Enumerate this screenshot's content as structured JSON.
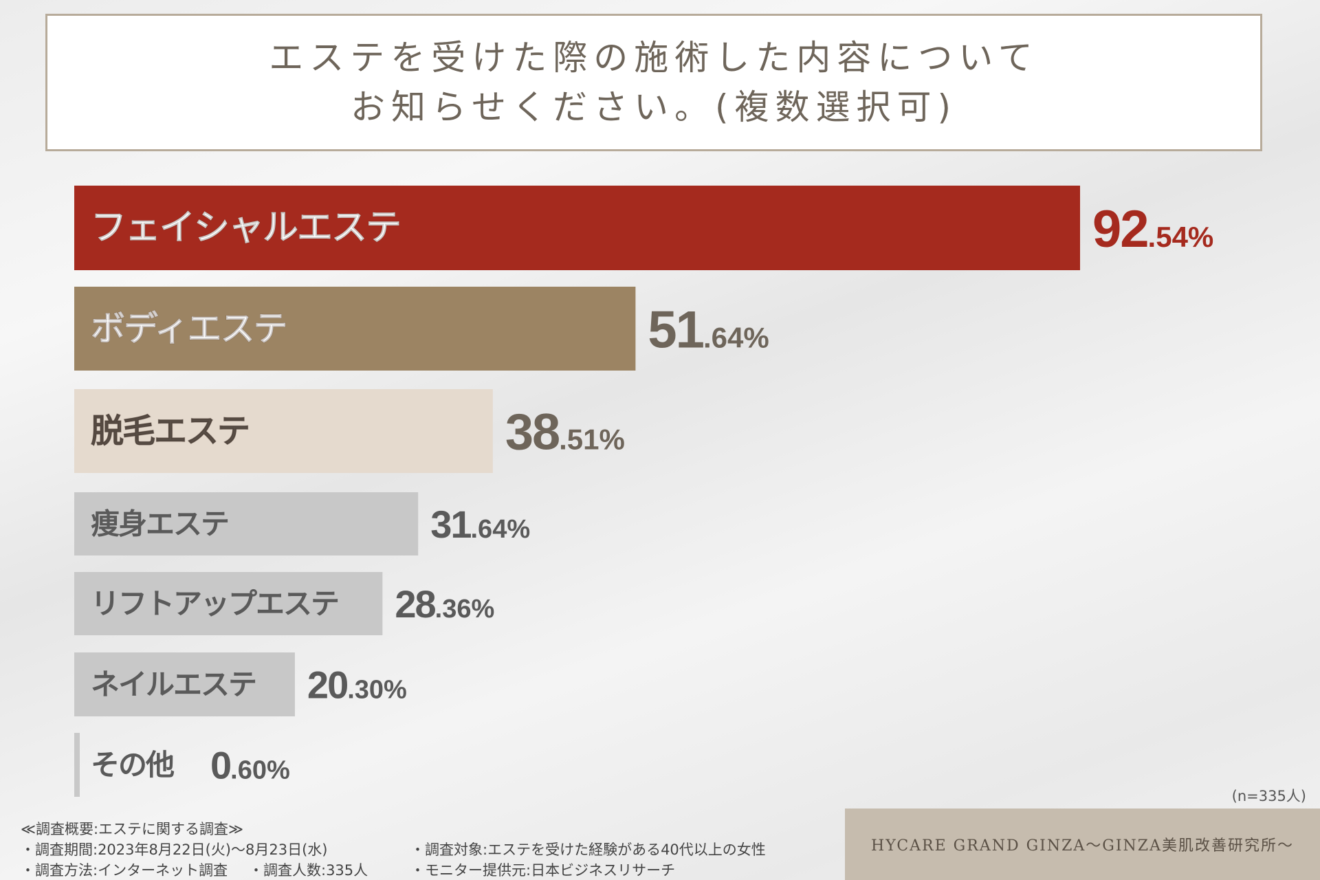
{
  "header": {
    "title_line1": "エステを受けた際の施術した内容について",
    "title_line2": "お知らせください。(複数選択可)"
  },
  "chart_data": {
    "type": "bar",
    "orientation": "horizontal",
    "title": "エステを受けた際の施術した内容についてお知らせください。(複数選択可)",
    "categories": [
      "フェイシャルエステ",
      "ボディエステ",
      "脱毛エステ",
      "痩身エステ",
      "リフトアップエステ",
      "ネイルエステ",
      "その他"
    ],
    "values": [
      92.54,
      51.64,
      38.51,
      31.64,
      28.36,
      20.3,
      0.6
    ],
    "value_labels_int": [
      "92",
      "51",
      "38",
      "31",
      "28",
      "20",
      "0"
    ],
    "value_labels_dec": [
      ".54%",
      ".64%",
      ".51%",
      ".64%",
      ".36%",
      ".30%",
      ".60%"
    ],
    "unit": "%",
    "xlim": [
      0,
      100
    ],
    "colors": [
      "#a52a1e",
      "#9c8463",
      "#e5dace",
      "#c8c8c8",
      "#c8c8c8",
      "#c8c8c8",
      "#c8c8c8"
    ],
    "label_colors": [
      "#ffffff",
      "#ffffff",
      "#5a5048",
      "#5a5a5a",
      "#5a5a5a",
      "#5a5a5a",
      "#5a5a5a"
    ],
    "value_colors": [
      "#a52a1e",
      "#6e655a",
      "#6e655a",
      "#5a5a5a",
      "#5a5a5a",
      "#5a5a5a",
      "#5a5a5a"
    ]
  },
  "sample_size": "(n=335人)",
  "footer": {
    "heading": "≪調査概要:エステに関する調査≫",
    "period": "・調査期間:2023年8月22日(火)〜8月23日(水)",
    "method": "・調査方法:インターネット調査",
    "count": "・調査人数:335人",
    "target": "・調査対象:エステを受けた経験がある40代以上の女性",
    "provider": "・モニター提供元:日本ビジネスリサーチ"
  },
  "brand": "HYCARE GRAND GINZA〜GINZA美肌改善研究所〜"
}
